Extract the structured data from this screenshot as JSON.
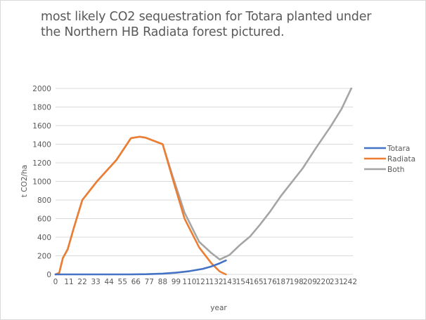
{
  "chart_data": {
    "type": "line",
    "title": "most likely CO2 sequestration for Totara planted under the Northern HB  Radiata forest pictured.",
    "title_lines": [
      "most likely CO2 sequestration for Totara planted under",
      "the Northern HB  Radiata forest pictured."
    ],
    "xlabel": "year",
    "ylabel": "t CO2/ha",
    "xlim": [
      0,
      243
    ],
    "ylim": [
      0,
      2000
    ],
    "grid": true,
    "legend_position": "right",
    "x_tick_labels": [
      "0",
      "11",
      "22",
      "33",
      "44",
      "55",
      "66",
      "77",
      "88",
      "99",
      "110",
      "121",
      "132",
      "143",
      "154",
      "165",
      "176",
      "187",
      "198",
      "209",
      "220",
      "231",
      "242"
    ],
    "y_tick_labels": [
      "0",
      "200",
      "400",
      "600",
      "800",
      "1000",
      "1200",
      "1400",
      "1600",
      "1800",
      "2000"
    ],
    "y_ticks": [
      0,
      200,
      400,
      600,
      800,
      1000,
      1200,
      1400,
      1600,
      1800,
      2000
    ],
    "series": [
      {
        "name": "Totara",
        "color": "#4472c4",
        "points": [
          [
            0,
            0
          ],
          [
            20,
            0
          ],
          [
            40,
            0
          ],
          [
            60,
            0
          ],
          [
            75,
            2
          ],
          [
            88,
            8
          ],
          [
            99,
            18
          ],
          [
            110,
            35
          ],
          [
            121,
            60
          ],
          [
            128,
            85
          ],
          [
            135,
            120
          ],
          [
            140,
            150
          ]
        ]
      },
      {
        "name": "Radiata",
        "color": "#ed7d31",
        "points": [
          [
            0,
            0
          ],
          [
            3,
            15
          ],
          [
            6,
            175
          ],
          [
            10,
            270
          ],
          [
            15,
            500
          ],
          [
            22,
            800
          ],
          [
            34,
            1000
          ],
          [
            50,
            1230
          ],
          [
            62,
            1465
          ],
          [
            69,
            1480
          ],
          [
            74,
            1470
          ],
          [
            88,
            1400
          ],
          [
            96,
            1040
          ],
          [
            106,
            600
          ],
          [
            118,
            290
          ],
          [
            128,
            120
          ],
          [
            135,
            30
          ],
          [
            140,
            0
          ]
        ]
      },
      {
        "name": "Both",
        "color": "#a5a5a5",
        "points": [
          [
            0,
            0
          ],
          [
            3,
            15
          ],
          [
            6,
            175
          ],
          [
            10,
            270
          ],
          [
            15,
            500
          ],
          [
            22,
            800
          ],
          [
            34,
            1000
          ],
          [
            50,
            1230
          ],
          [
            62,
            1465
          ],
          [
            69,
            1480
          ],
          [
            74,
            1470
          ],
          [
            88,
            1400
          ],
          [
            96,
            1065
          ],
          [
            106,
            665
          ],
          [
            118,
            350
          ],
          [
            128,
            230
          ],
          [
            135,
            160
          ],
          [
            143,
            210
          ],
          [
            151,
            310
          ],
          [
            160,
            410
          ],
          [
            168,
            535
          ],
          [
            176,
            670
          ],
          [
            185,
            840
          ],
          [
            194,
            990
          ],
          [
            203,
            1140
          ],
          [
            214,
            1360
          ],
          [
            226,
            1590
          ],
          [
            235,
            1780
          ],
          [
            243,
            2000
          ]
        ]
      }
    ]
  }
}
